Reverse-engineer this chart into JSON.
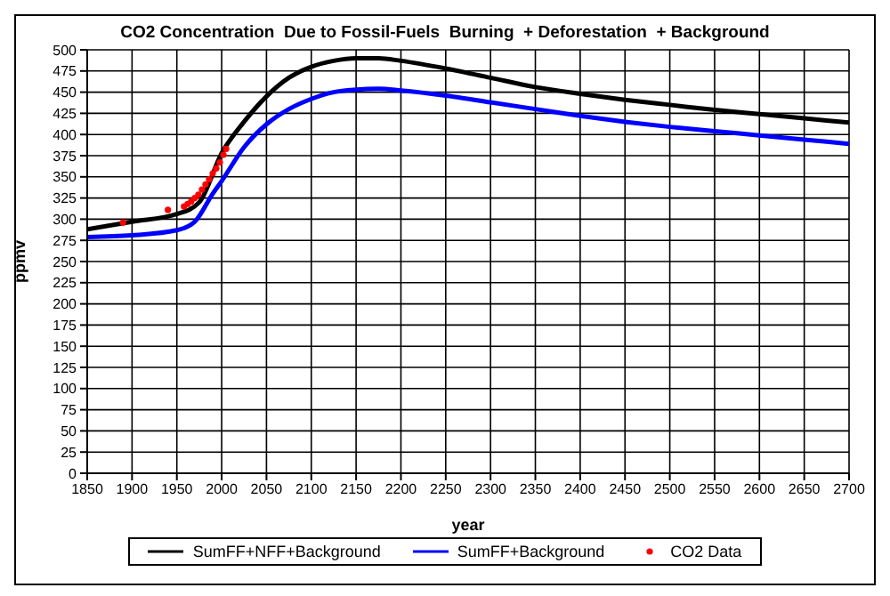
{
  "chart_data": {
    "type": "line",
    "title": "CO2 Concentration  Due to Fossil-Fuels  Burning  + Deforestation  + Background",
    "xlabel": "year",
    "ylabel": "ppmv",
    "xlim": [
      1850,
      2700
    ],
    "xticks": [
      1850,
      1900,
      1950,
      2000,
      2050,
      2100,
      2150,
      2200,
      2250,
      2300,
      2350,
      2400,
      2450,
      2500,
      2550,
      2600,
      2650,
      2700
    ],
    "ylim": [
      0,
      500
    ],
    "yticks": [
      0,
      25,
      50,
      75,
      100,
      125,
      150,
      175,
      200,
      225,
      250,
      275,
      300,
      325,
      350,
      375,
      400,
      425,
      450,
      475,
      500
    ],
    "grid": true,
    "legend": "bottom",
    "marker": "none",
    "line_style": "solid",
    "series": [
      {
        "name": "SumFF+NFF+Background",
        "color": "#000000",
        "x": [
          1850,
          1900,
          1950,
          1975,
          2000,
          2025,
          2050,
          2075,
          2100,
          2125,
          2150,
          2175,
          2200,
          2250,
          2300,
          2350,
          2400,
          2450,
          2500,
          2550,
          2600,
          2650,
          2700
        ],
        "values": [
          288,
          297,
          306,
          320,
          378,
          415,
          445,
          467,
          480,
          487,
          490,
          490,
          487,
          478,
          467,
          456,
          448,
          441,
          435,
          429,
          424,
          419,
          414
        ]
      },
      {
        "name": "SumFF+Background",
        "color": "#0000ff",
        "x": [
          1850,
          1900,
          1950,
          1970,
          1990,
          2000,
          2025,
          2050,
          2075,
          2100,
          2125,
          2150,
          2175,
          2200,
          2250,
          2300,
          2350,
          2400,
          2450,
          2500,
          2550,
          2600,
          2650,
          2700
        ],
        "values": [
          279,
          281,
          287,
          297,
          330,
          345,
          385,
          412,
          430,
          442,
          450,
          453,
          454,
          452,
          446,
          438,
          430,
          422,
          415,
          409,
          404,
          399,
          394,
          389
        ]
      },
      {
        "name": "CO2 Data",
        "type": "scatter",
        "color": "#ff0000",
        "marker": "circle",
        "x": [
          1890,
          1940,
          1958,
          1962,
          1966,
          1970,
          1974,
          1978,
          1982,
          1986,
          1990,
          1994,
          1998,
          2002,
          2005
        ],
        "values": [
          296,
          311,
          315,
          318,
          321,
          325,
          329,
          335,
          341,
          347,
          354,
          360,
          367,
          376,
          383
        ]
      }
    ]
  }
}
